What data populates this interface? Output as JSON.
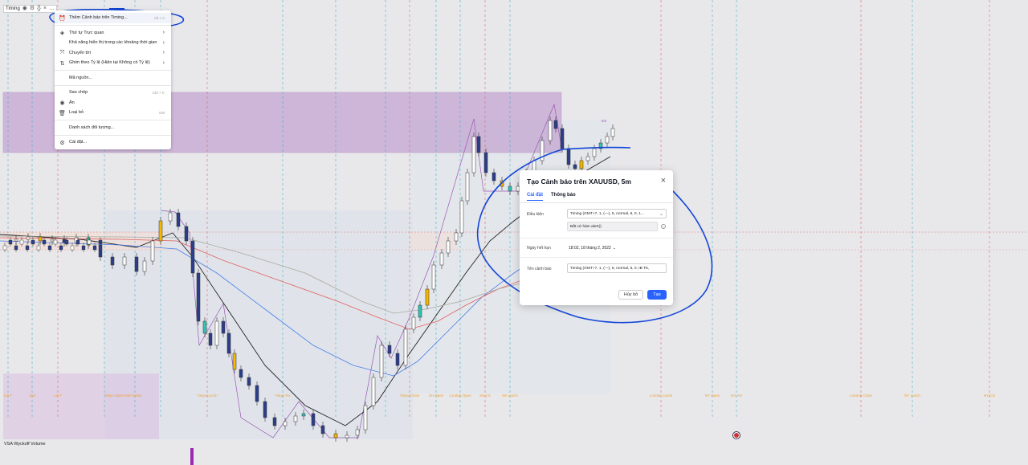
{
  "legend": {
    "indicator": "Timing",
    "icons": [
      "eye-icon",
      "gear-icon",
      "braces-icon",
      "close-icon",
      "more-icon"
    ]
  },
  "session_labels": [
    "LO T",
    "Syd",
    "LO T",
    "Tokyo Open",
    "NW Sydne",
    "Tokyo Lunch",
    "Tokyo Fix",
    "Tokyo Close",
    "SH Open",
    "London Open",
    "SH CX",
    "HK Lunch",
    "London Lunch",
    "NY Open",
    "SH. NY",
    "London Close",
    "NY Lunch",
    "NY Clo"
  ],
  "context_menu": {
    "items": [
      {
        "icon": "alarm-clock-icon",
        "label": "Thêm Cảnh báo trên Timing...",
        "shortcut": "Alt + A",
        "highlight": true
      },
      {
        "separator": true
      },
      {
        "icon": "layers-icon",
        "label": "Thứ tự Trực quan",
        "submenu": true
      },
      {
        "icon": "",
        "label": "Khả năng hiển thị trong các khoảng thời gian",
        "submenu": true
      },
      {
        "icon": "move-icon",
        "label": "Chuyển tới",
        "submenu": true
      },
      {
        "icon": "pin-scale-icon",
        "label": "Ghim theo Tỷ lệ (Hiện tại Không có Tỷ lệ)",
        "submenu": true
      },
      {
        "separator": true
      },
      {
        "icon": "",
        "label": "Mã nguồn..."
      },
      {
        "separator": true
      },
      {
        "icon": "",
        "label": "Sao chép",
        "shortcut": "Ctrl + C"
      },
      {
        "icon": "eye-icon",
        "label": "Ẩn"
      },
      {
        "icon": "trash-icon",
        "label": "Loại bỏ",
        "shortcut": "Del"
      },
      {
        "separator": true
      },
      {
        "icon": "",
        "label": "Danh sách đối tượng..."
      },
      {
        "separator": true
      },
      {
        "icon": "gear-icon",
        "label": "Cài đặt..."
      }
    ]
  },
  "dialog": {
    "title": "Tạo Cảnh báo trên XAUUSD, 5m",
    "tabs": [
      "Cài đặt",
      "Thông báo"
    ],
    "condition_label": "Điều kiện",
    "condition_value": "Timing (GMT+7, 1, (—), 5, normal, 6, 0, 1...",
    "trigger_value": "Bất cứ hàm alert()",
    "expiry_label": "Ngày hết hạn",
    "expiry_value": "18:02, 18 tháng 2, 2022",
    "name_label": "Tên cảnh báo",
    "name_value": "Timing (GMT+7, 1, (—), 5, normal, 6, 0, IB TK,",
    "cancel_label": "Hủy bỏ",
    "ok_label": "Tạo"
  },
  "volume_indicator": "VSA Wyckoff Volume",
  "tag_5m": "5m",
  "colors": {
    "accent": "#2962ff",
    "purple_zone": "#b98fc9",
    "annotation_blue": "#1346d8",
    "candle_up": "#ffffff",
    "candle_down": "#2c3e8a",
    "candle_yellow": "#f5b700",
    "candle_teal": "#2ec4b6"
  }
}
